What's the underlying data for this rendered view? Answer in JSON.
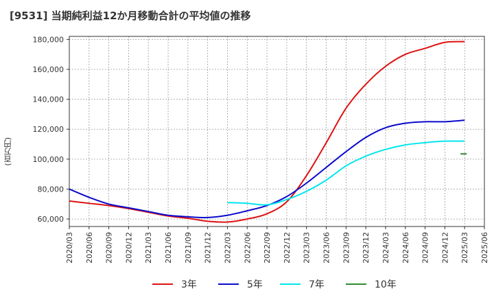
{
  "title": "[9531]  当期純利益12か月移動合計の平均値の推移",
  "chart_data": {
    "type": "line",
    "title": "[9531]  当期純利益12か月移動合計の平均値の推移",
    "ylabel": "(百万円)",
    "xlabel": "",
    "ylim": [
      55000,
      182000
    ],
    "yticks": [
      60000,
      80000,
      100000,
      120000,
      140000,
      160000,
      180000
    ],
    "ytick_labels": [
      "60,000",
      "80,000",
      "100,000",
      "120,000",
      "140,000",
      "160,000",
      "180,000"
    ],
    "xtick_labels": [
      "2020/03",
      "2020/06",
      "2020/09",
      "2020/12",
      "2021/03",
      "2021/06",
      "2021/09",
      "2021/12",
      "2022/03",
      "2022/06",
      "2022/09",
      "2022/12",
      "2023/03",
      "2023/06",
      "2023/09",
      "2023/12",
      "2024/03",
      "2024/06",
      "2024/09",
      "2024/12",
      "2025/03",
      "2025/06"
    ],
    "grid": true,
    "legend_position": "bottom",
    "series": [
      {
        "name": "3年",
        "color": "#dd1111",
        "values": [
          72000,
          70500,
          69000,
          67000,
          64500,
          62000,
          60500,
          58500,
          58000,
          60000,
          63500,
          71500,
          89000,
          111000,
          134000,
          150000,
          162000,
          170000,
          174000,
          178000,
          178500,
          null
        ]
      },
      {
        "name": "5年",
        "color": "#0a0acc",
        "values": [
          80000,
          74500,
          70000,
          67500,
          65000,
          62500,
          61500,
          61000,
          62500,
          65500,
          69000,
          75000,
          84000,
          94500,
          105000,
          114500,
          121000,
          124000,
          125000,
          125000,
          126000,
          null
        ]
      },
      {
        "name": "7年",
        "color": "#00e5ee",
        "values": [
          null,
          null,
          null,
          null,
          null,
          null,
          null,
          null,
          71000,
          70500,
          69500,
          73000,
          78500,
          86000,
          95500,
          102000,
          106500,
          109500,
          111000,
          112000,
          112000,
          null
        ]
      },
      {
        "name": "10年",
        "color": "#2e8b2e",
        "values": [
          null,
          null,
          null,
          null,
          null,
          null,
          null,
          null,
          null,
          null,
          null,
          null,
          null,
          null,
          null,
          null,
          null,
          null,
          null,
          null,
          103500,
          null
        ]
      }
    ]
  }
}
